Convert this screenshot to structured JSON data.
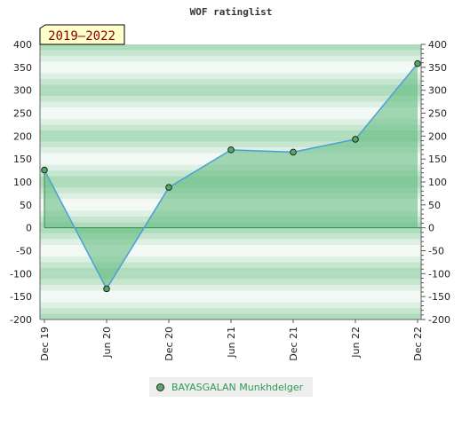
{
  "chart_data": {
    "type": "area",
    "title": "WOF ratinglist",
    "period_badge": "2019–2022",
    "ylim": [
      -200,
      400
    ],
    "yticks": [
      400,
      350,
      300,
      250,
      200,
      150,
      100,
      50,
      0,
      -50,
      -100,
      -150,
      -200
    ],
    "ytick_labels": [
      "400",
      "350",
      "300",
      "250",
      "200",
      "150",
      "100",
      "50",
      "0",
      "-50",
      "-100",
      "-150",
      "-200"
    ],
    "categories": [
      "Dec 19",
      "Jun 20",
      "Dec 20",
      "Jun 21",
      "Dec 21",
      "Jun 22",
      "Dec 22"
    ],
    "series": [
      {
        "name": "BAYASGALAN Munkhdelger",
        "values": [
          126,
          -133,
          88,
          170,
          165,
          193,
          358
        ]
      }
    ],
    "dual_y_axis": true,
    "legend_position": "bottom-center"
  },
  "colors": {
    "line": "#4a9fd8",
    "fill": "#5cb87a",
    "marker": "#55aa66",
    "badge_bg": "#ffffcc",
    "badge_text": "#8b0000",
    "legend_text": "#2e9a52"
  }
}
